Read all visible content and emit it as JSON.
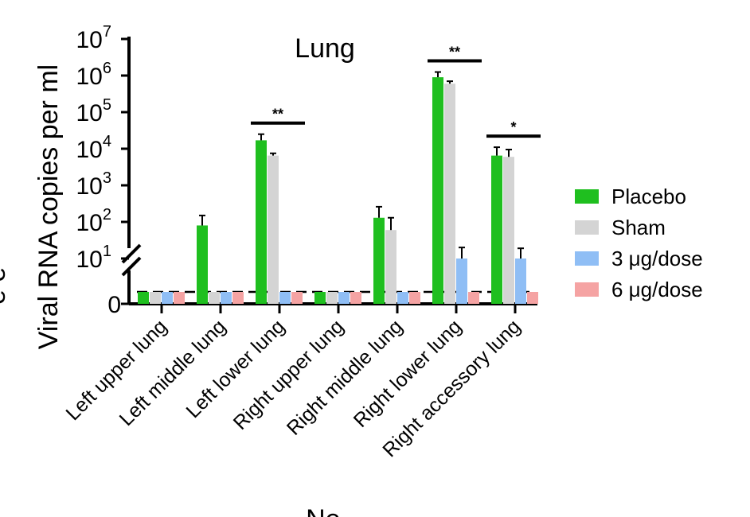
{
  "chart_data": {
    "type": "bar",
    "title": "Lung",
    "ylabel": "Viral RNA copies per ml",
    "xlabel": "Ne...",
    "yscale": "log-broken",
    "ylim": [
      0,
      10000000
    ],
    "y_ticks": [
      {
        "base": "0",
        "exp": ""
      },
      {
        "base": "10",
        "exp": "1"
      },
      {
        "base": "10",
        "exp": "2"
      },
      {
        "base": "10",
        "exp": "3"
      },
      {
        "base": "10",
        "exp": "4"
      },
      {
        "base": "10",
        "exp": "5"
      },
      {
        "base": "10",
        "exp": "6"
      },
      {
        "base": "10",
        "exp": "7"
      }
    ],
    "detection_limit_line": true,
    "categories": [
      "Left upper lung",
      "Left middle lung",
      "Left lower lung",
      "Right upper lung",
      "Right middle lung",
      "Right lower lung",
      "Right accessory lung"
    ],
    "series": [
      {
        "name": "Placebo",
        "color": "#1fbf1f",
        "values": [
          0,
          80,
          17000,
          0,
          130,
          900000,
          6500
        ],
        "errors": [
          0,
          150,
          25000,
          0,
          260,
          1250000,
          11000
        ]
      },
      {
        "name": "Sham",
        "color": "#d4d4d4",
        "values": [
          0,
          0,
          6500,
          0,
          60,
          600000,
          6000
        ],
        "errors": [
          0,
          0,
          7500,
          0,
          130,
          700000,
          9500
        ]
      },
      {
        "name": "3 μg/dose",
        "color": "#8fbef5",
        "values": [
          0,
          0,
          0,
          0,
          0,
          10,
          10
        ],
        "errors": [
          0,
          0,
          0,
          0,
          0,
          20,
          19
        ]
      },
      {
        "name": "6 μg/dose",
        "color": "#f5a3a3",
        "values": [
          0,
          0,
          0,
          0,
          0,
          0,
          0
        ],
        "errors": [
          0,
          0,
          0,
          0,
          0,
          0,
          0
        ]
      }
    ],
    "significance": [
      {
        "category_index": 2,
        "label": "**"
      },
      {
        "category_index": 5,
        "label": "**"
      },
      {
        "category_index": 6,
        "label": "*"
      }
    ],
    "legend_position": "right",
    "grid": false
  },
  "left_fragment": "e e"
}
